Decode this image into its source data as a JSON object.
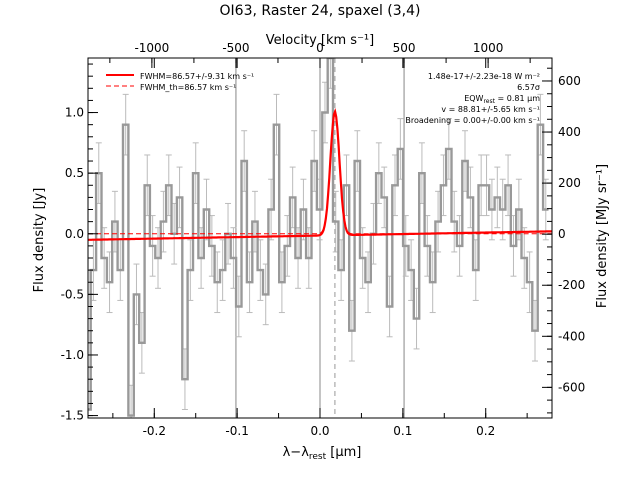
{
  "chart_data": {
    "type": "line",
    "title": "OI63, Raster 24, spaxel (3,4)",
    "xlabel": "λ−λ",
    "xlabel_sub": "rest",
    "xlabel_unit": "[μm]",
    "ylabel": "Flux density [Jy]",
    "y2label": "Flux density [MJy sr⁻¹]",
    "top_xlabel": "Velocity [km s⁻¹]",
    "xlim": [
      -0.28,
      0.28
    ],
    "ylim": [
      -1.52,
      1.45
    ],
    "y2lim": [
      -720,
      690
    ],
    "top_xlim": [
      -1380,
      1380
    ],
    "x_ticks": [
      "-0.2",
      "-0.1",
      "0.0",
      "0.1",
      "0.2"
    ],
    "y_ticks": [
      "-1.5",
      "-1.0",
      "-0.5",
      "0.0",
      "0.5",
      "1.0"
    ],
    "y2_ticks": [
      "-600",
      "-400",
      "-200",
      "0",
      "200",
      "400",
      "600"
    ],
    "top_ticks": [
      "-1000",
      "-500",
      "0",
      "500",
      "1000"
    ],
    "vlines_top": [
      -500,
      0,
      500
    ],
    "line_center": 0.018,
    "legend": [
      {
        "label": "FWHM=86.57+/-9.31 km s⁻¹",
        "style": "solid",
        "color": "#ff0000"
      },
      {
        "label": "FWHM_th=86.57 km s⁻¹",
        "style": "dashed",
        "color": "#ff0000"
      }
    ],
    "annotations": [
      "1.48e-17+/-2.23e-18 W m⁻²",
      "6.57σ",
      "EQW",
      "rest",
      " = 0.81 μm",
      "v = 88.81+/-5.65 km s⁻¹",
      "Broadening = 0.00+/-0.00 km s⁻¹"
    ],
    "data_color": "#999999",
    "fit_color": "#ff0000",
    "series": [
      {
        "x": [
          -0.28,
          -0.2735,
          -0.267,
          -0.2605,
          -0.254,
          -0.2475,
          -0.241,
          -0.2345,
          -0.228,
          -0.2215,
          -0.215,
          -0.2085,
          -0.202,
          -0.1955,
          -0.189,
          -0.1825,
          -0.176,
          -0.1695,
          -0.163,
          -0.1565,
          -0.15,
          -0.1435,
          -0.137,
          -0.1305,
          -0.124,
          -0.1175,
          -0.111,
          -0.1045,
          -0.098,
          -0.0915,
          -0.085,
          -0.0785,
          -0.072,
          -0.0655,
          -0.059,
          -0.0525,
          -0.046,
          -0.0395,
          -0.033,
          -0.0265,
          -0.02,
          -0.0135,
          -0.007,
          -0.0005,
          0.006,
          0.0125,
          0.019,
          0.0255,
          0.032,
          0.0385,
          0.045,
          0.0515,
          0.058,
          0.0645,
          0.071,
          0.0775,
          0.084,
          0.0905,
          0.097,
          0.1035,
          0.11,
          0.1165,
          0.123,
          0.1295,
          0.136,
          0.1425,
          0.149,
          0.1555,
          0.162,
          0.1685,
          0.175,
          0.1815,
          0.188,
          0.1945,
          0.201,
          0.2075,
          0.214,
          0.2205,
          0.227,
          0.2335,
          0.24,
          0.2465,
          0.253,
          0.2595,
          0.266,
          0.2725
        ],
        "y": [
          -1.45,
          -0.3,
          0.5,
          -0.2,
          -0.4,
          0.1,
          -0.3,
          0.9,
          -1.5,
          -0.5,
          -0.9,
          0.4,
          -0.1,
          -0.2,
          0.1,
          0.4,
          0.0,
          0.3,
          -1.2,
          -0.3,
          0.5,
          -0.2,
          0.2,
          -0.1,
          -0.4,
          -0.3,
          0.0,
          -0.2,
          -0.6,
          0.6,
          -0.4,
          0.1,
          -0.3,
          -0.5,
          0.2,
          0.9,
          -0.4,
          -0.1,
          0.3,
          -0.2,
          0.2,
          -0.2,
          0.6,
          0.2,
          1.0,
          1.45,
          0.1,
          -0.3,
          0.4,
          -0.8,
          0.6,
          -0.2,
          -0.4,
          0.0,
          0.5,
          0.3,
          -0.6,
          0.4,
          0.7,
          -0.1,
          -0.3,
          -0.7,
          0.5,
          -0.1,
          -0.4,
          0.1,
          0.4,
          0.7,
          0.1,
          -0.1,
          0.6,
          0.3,
          -0.3,
          0.4,
          0.4,
          0.2,
          0.3,
          0.2,
          0.4,
          -0.1,
          0.2,
          -0.2,
          -0.4,
          -0.8,
          0.9,
          0.2
        ],
        "err": 0.25
      }
    ],
    "fit": {
      "baseline_start": -0.05,
      "baseline_end": 0.02,
      "amplitude": 1.02,
      "center": 0.018,
      "sigma": 0.0055
    }
  }
}
